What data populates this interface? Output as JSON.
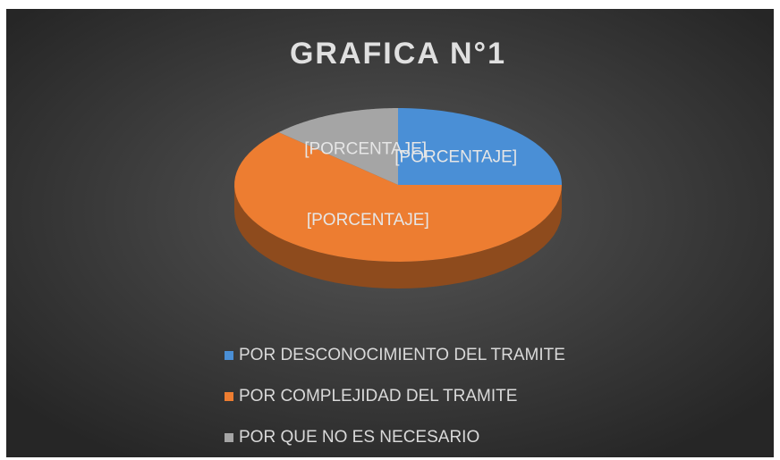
{
  "chart_data": {
    "type": "pie3d",
    "title": "GRAFICA N°1",
    "categories": [
      "POR DESCONOCIMIENTO DEL TRAMITE",
      "POR COMPLEJIDAD DEL TRAMITE",
      "POR QUE NO ES NECESARIO"
    ],
    "values": [
      25,
      62,
      13
    ],
    "value_labels": [
      "[PORCENTAJE]",
      "[PORCENTAJE]",
      "[PORCENTAJE]"
    ],
    "colors": [
      "#4a8fd6",
      "#ed7d31",
      "#a5a5a5"
    ],
    "legend": "bottom"
  }
}
